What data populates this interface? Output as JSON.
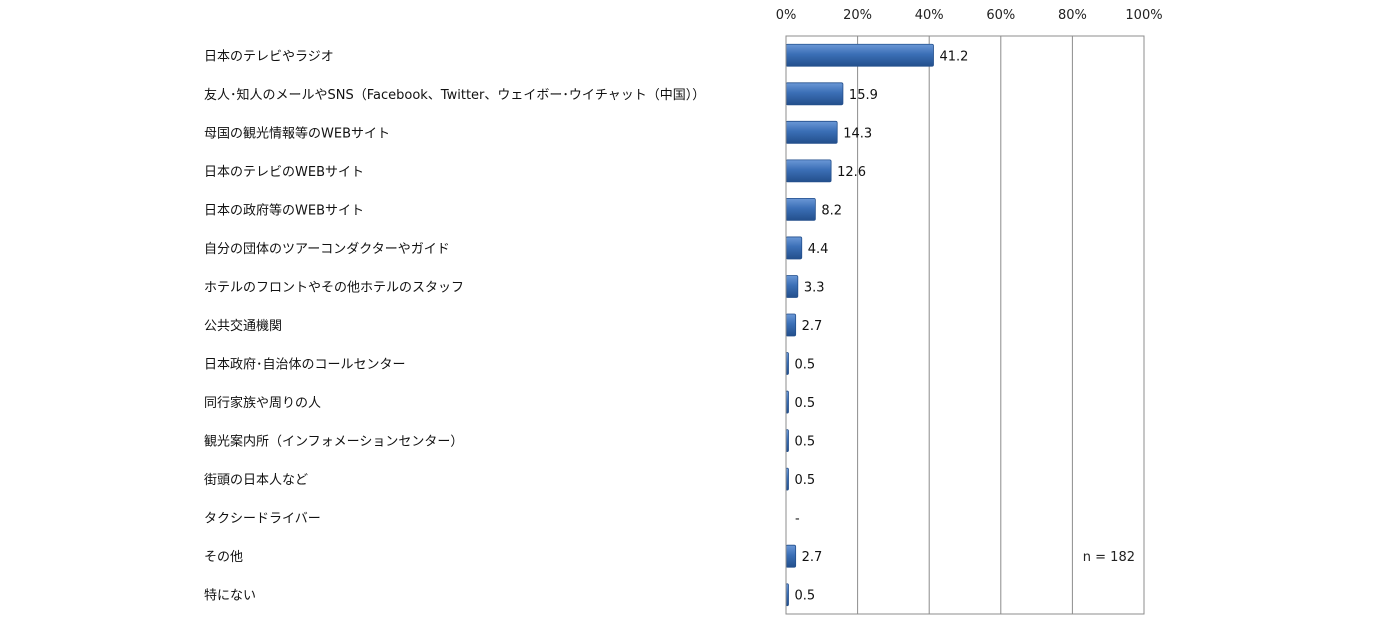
{
  "chart_data": {
    "type": "bar",
    "orientation": "horizontal",
    "categories": [
      "日本のテレビやラジオ",
      "友人･知人のメールやSNS（Facebook、Twitter、ウェイボー･ウイチャット（中国））",
      "母国の観光情報等のWEBサイト",
      "日本のテレビのWEBサイト",
      "日本の政府等のWEBサイト",
      "自分の団体のツアーコンダクターやガイド",
      "ホテルのフロントやその他ホテルのスタッフ",
      "公共交通機関",
      "日本政府･自治体のコールセンター",
      "同行家族や周りの人",
      "観光案内所（インフォメーションセンター）",
      "街頭の日本人など",
      "タクシードライバー",
      "その他",
      "特にない"
    ],
    "values": [
      41.2,
      15.9,
      14.3,
      12.6,
      8.2,
      4.4,
      3.3,
      2.7,
      0.5,
      0.5,
      0.5,
      0.5,
      null,
      2.7,
      0.5
    ],
    "value_labels": [
      "41.2",
      "15.9",
      "14.3",
      "12.6",
      "8.2",
      "4.4",
      "3.3",
      "2.7",
      "0.5",
      "0.5",
      "0.5",
      "0.5",
      "-",
      "2.7",
      "0.5"
    ],
    "x_ticks": [
      "0%",
      "20%",
      "40%",
      "60%",
      "80%",
      "100%"
    ],
    "xlim": [
      0,
      100
    ],
    "x_axis_position": "top",
    "grid": true,
    "bar_color": "#3b6fb6",
    "bar_color_dark": "#234f8c",
    "bar_color_light": "#6b98d6",
    "annotation": "n = 182"
  }
}
